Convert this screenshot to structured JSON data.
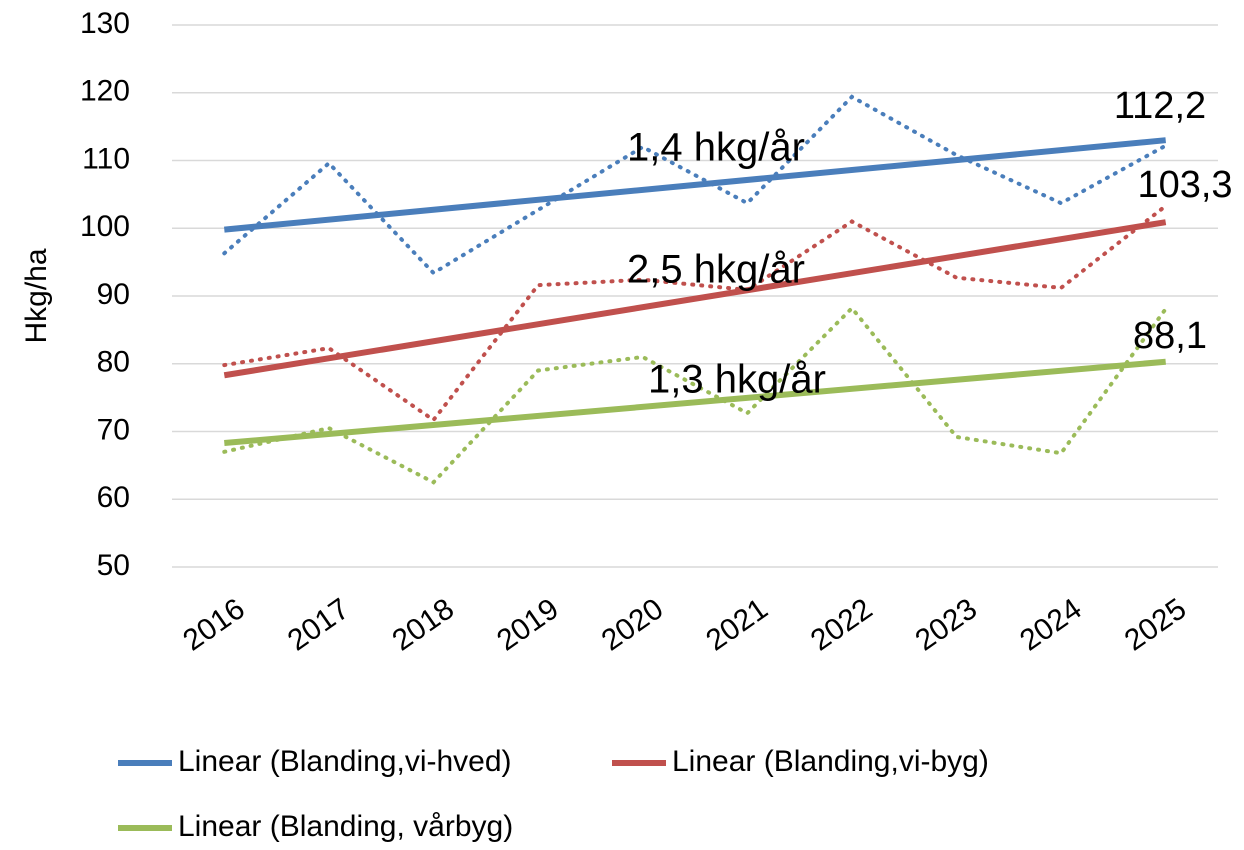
{
  "chart_data": {
    "type": "line",
    "y_label": "Hkg/ha",
    "categories": [
      "2016",
      "2017",
      "2018",
      "2019",
      "2020",
      "2021",
      "2022",
      "2023",
      "2024",
      "2025"
    ],
    "series": [
      {
        "name": "Linear (Blanding,vi-hved)",
        "color": "#4a7ebb",
        "values": [
          96.3,
          109.6,
          93.4,
          102.7,
          112,
          103.7,
          119.4,
          110.8,
          103.7,
          112.2
        ],
        "value_labels": [
          null,
          null,
          null,
          null,
          null,
          null,
          null,
          null,
          null,
          "112,2"
        ],
        "trend": [
          99.8,
          113
        ]
      },
      {
        "name": "Linear (Blanding,vi-byg)",
        "color": "#c0504d",
        "values": [
          79.8,
          82.3,
          71.7,
          91.6,
          92.4,
          90.9,
          101,
          92.7,
          91.2,
          103.3
        ],
        "value_labels": [
          null,
          null,
          null,
          null,
          null,
          null,
          null,
          null,
          null,
          "103,3"
        ],
        "trend": [
          78.3,
          100.9
        ]
      },
      {
        "name": "Linear (Blanding, vårbyg)",
        "color": "#9bbb59",
        "values": [
          67,
          70.5,
          62.5,
          79,
          81,
          72.7,
          88.2,
          69.2,
          66.8,
          88.1
        ],
        "value_labels": [
          null,
          null,
          null,
          null,
          null,
          null,
          null,
          null,
          null,
          "88,1"
        ],
        "trend": [
          68.3,
          80.3
        ]
      }
    ],
    "annotations": [
      "1,4 hkg/år",
      "2,5 hkg/år",
      "1,3 hkg/år"
    ],
    "ylim": [
      50,
      130
    ],
    "yticks": [
      50,
      60,
      70,
      80,
      90,
      100,
      110,
      120,
      130
    ],
    "grid": true,
    "legend": "bottom"
  }
}
